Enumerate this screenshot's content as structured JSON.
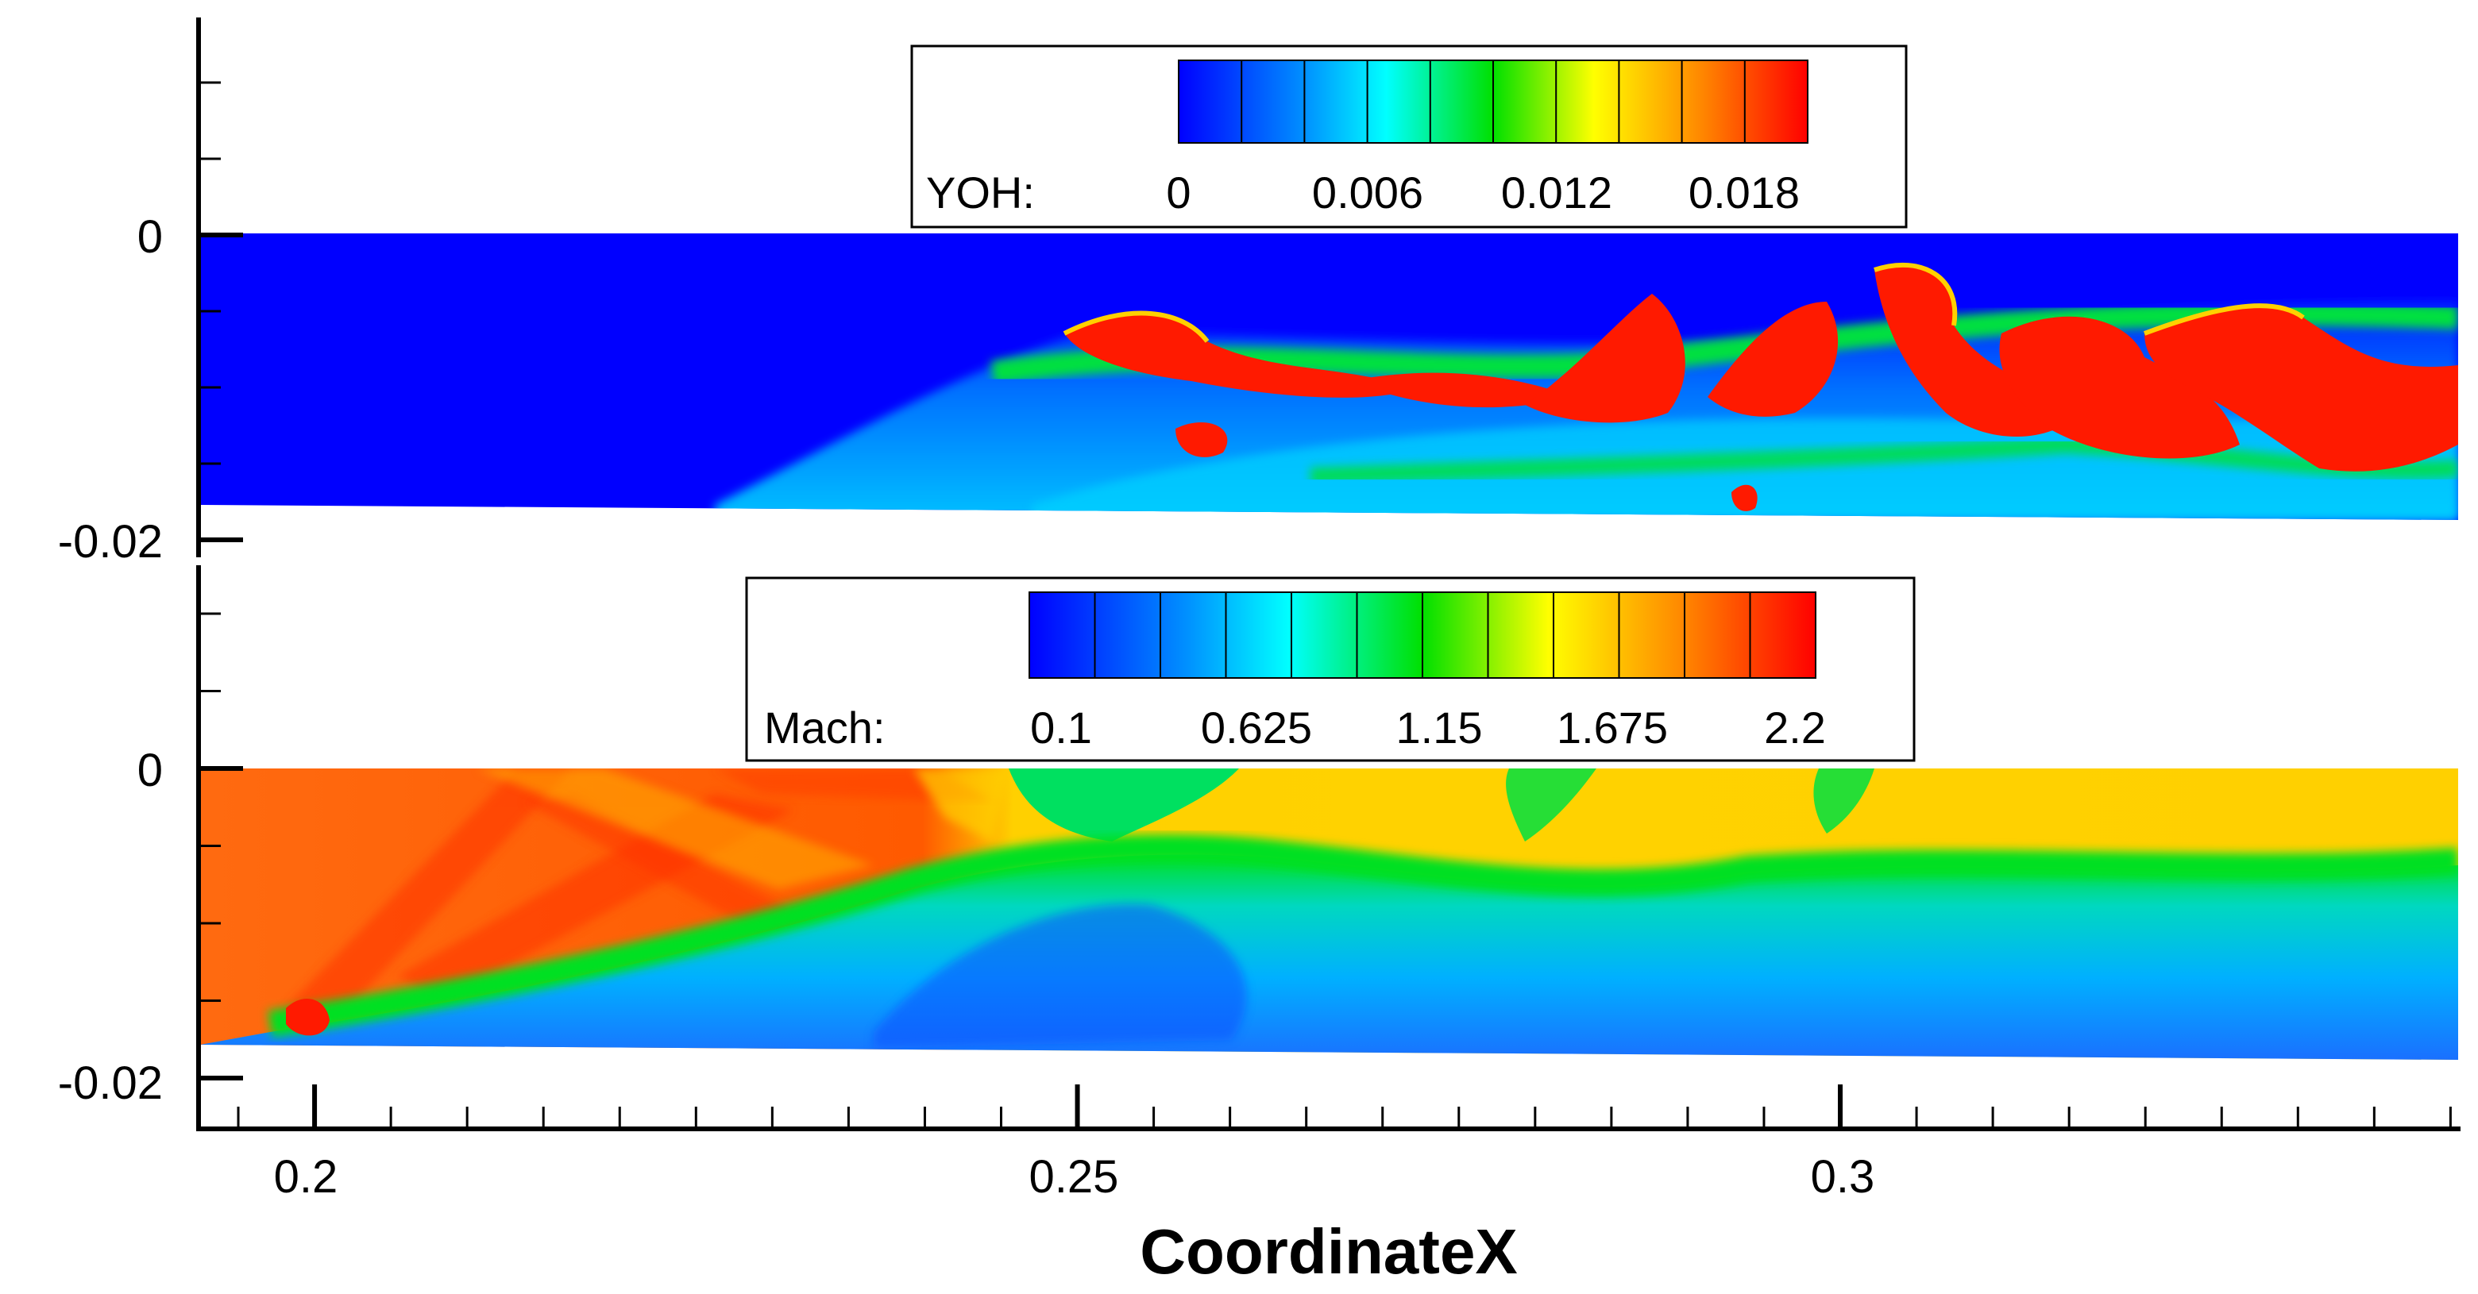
{
  "chart_data": {
    "type": "heatmap",
    "xlabel": "CoordinateX",
    "xlim": [
      0.1925,
      0.3405
    ],
    "x_ticks": [
      "0.2",
      "0.25",
      "0.3"
    ],
    "x_tick_values": [
      0.2,
      0.25,
      0.3
    ],
    "panels": [
      {
        "name": "yoh-panel",
        "variable": "YOH",
        "ylim": [
          -0.02,
          0.0075
        ],
        "y_ticks": [
          "0",
          "-0.02"
        ],
        "y_tick_values": [
          0,
          -0.02
        ],
        "legend": {
          "label": "YOH:",
          "min": 0,
          "max": 0.02,
          "tick_labels": [
            "0",
            "0.006",
            "0.012",
            "0.018"
          ],
          "tick_values": [
            0,
            0.006,
            0.012,
            0.018
          ],
          "levels": 10
        }
      },
      {
        "name": "mach-panel",
        "variable": "Mach",
        "ylim": [
          -0.02,
          0.0075
        ],
        "y_ticks": [
          "0",
          "-0.02"
        ],
        "y_tick_values": [
          0,
          -0.02
        ],
        "legend": {
          "label": "Mach:",
          "min": 0.1,
          "max": 2.2,
          "tick_labels": [
            "0.1",
            "0.625",
            "1.15",
            "1.675",
            "2.2"
          ],
          "tick_values": [
            0.1,
            0.625,
            1.15,
            1.675,
            2.2
          ],
          "levels": 12
        }
      }
    ],
    "colormap": [
      "#0000ff",
      "#0070ff",
      "#00c8ff",
      "#00ffd8",
      "#00e040",
      "#28d200",
      "#e8ff00",
      "#ffc000",
      "#ff7a00",
      "#ff1a00"
    ]
  }
}
